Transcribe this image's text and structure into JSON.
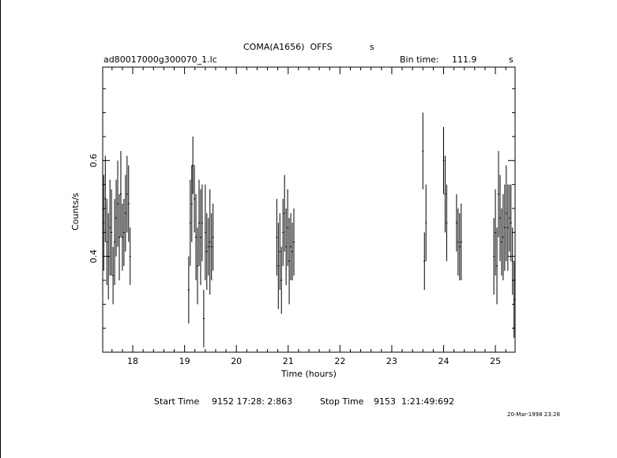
{
  "header": {
    "title": "COMA(A1656)  OFFS",
    "title_suffix": "s",
    "filename": "ad80017000g300070_1.lc",
    "bin_label": "Bin time:",
    "bin_value": "111.9",
    "bin_unit": "s"
  },
  "footer": {
    "start_label": "Start Time",
    "start_value": "9152 17:28: 2:863",
    "stop_label": "Stop Time",
    "stop_value": "9153  1:21:49:692",
    "timestamp": "20-Mar-1998 23:28"
  },
  "chart_data": {
    "type": "scatter",
    "xlabel": "Time (hours)",
    "ylabel": "Counts/s",
    "xlim": [
      17.42,
      25.38
    ],
    "ylim": [
      0.2,
      0.795
    ],
    "xticks": [
      18,
      19,
      20,
      21,
      22,
      23,
      24,
      25
    ],
    "yticks": [
      0.4,
      0.6
    ],
    "xerr": 0.0155,
    "points": [
      [
        17.44,
        0.47,
        0.1
      ],
      [
        17.47,
        0.52,
        0.09
      ],
      [
        17.5,
        0.43,
        0.09
      ],
      [
        17.53,
        0.4,
        0.09
      ],
      [
        17.56,
        0.46,
        0.1
      ],
      [
        17.59,
        0.45,
        0.09
      ],
      [
        17.62,
        0.36,
        0.06
      ],
      [
        17.65,
        0.43,
        0.09
      ],
      [
        17.68,
        0.48,
        0.08
      ],
      [
        17.71,
        0.51,
        0.09
      ],
      [
        17.74,
        0.44,
        0.09
      ],
      [
        17.77,
        0.53,
        0.09
      ],
      [
        17.8,
        0.44,
        0.07
      ],
      [
        17.83,
        0.45,
        0.07
      ],
      [
        17.86,
        0.49,
        0.08
      ],
      [
        17.89,
        0.53,
        0.08
      ],
      [
        17.92,
        0.51,
        0.08
      ],
      [
        17.95,
        0.4,
        0.06
      ],
      [
        19.08,
        0.33,
        0.07
      ],
      [
        19.11,
        0.47,
        0.09
      ],
      [
        19.14,
        0.51,
        0.08
      ],
      [
        19.16,
        0.59,
        0.06
      ],
      [
        19.19,
        0.52,
        0.07
      ],
      [
        19.22,
        0.44,
        0.09
      ],
      [
        19.25,
        0.38,
        0.08
      ],
      [
        19.28,
        0.47,
        0.09
      ],
      [
        19.31,
        0.44,
        0.1
      ],
      [
        19.34,
        0.47,
        0.08
      ],
      [
        19.37,
        0.27,
        0.06
      ],
      [
        19.4,
        0.45,
        0.1
      ],
      [
        19.43,
        0.41,
        0.08
      ],
      [
        19.46,
        0.42,
        0.06
      ],
      [
        19.49,
        0.43,
        0.11
      ],
      [
        19.52,
        0.42,
        0.07
      ],
      [
        19.55,
        0.44,
        0.07
      ],
      [
        20.78,
        0.44,
        0.08
      ],
      [
        20.81,
        0.38,
        0.09
      ],
      [
        20.84,
        0.41,
        0.08
      ],
      [
        20.87,
        0.35,
        0.07
      ],
      [
        20.9,
        0.45,
        0.07
      ],
      [
        20.93,
        0.49,
        0.08
      ],
      [
        20.96,
        0.42,
        0.08
      ],
      [
        20.99,
        0.46,
        0.08
      ],
      [
        21.02,
        0.39,
        0.09
      ],
      [
        21.05,
        0.42,
        0.07
      ],
      [
        21.08,
        0.41,
        0.06
      ],
      [
        21.11,
        0.43,
        0.07
      ],
      [
        23.6,
        0.62,
        0.08
      ],
      [
        23.63,
        0.39,
        0.06
      ],
      [
        23.66,
        0.47,
        0.08
      ],
      [
        24.0,
        0.6,
        0.07
      ],
      [
        24.03,
        0.53,
        0.08
      ],
      [
        24.06,
        0.47,
        0.08
      ],
      [
        24.25,
        0.47,
        0.06
      ],
      [
        24.28,
        0.43,
        0.07
      ],
      [
        24.31,
        0.42,
        0.07
      ],
      [
        24.34,
        0.43,
        0.08
      ],
      [
        24.97,
        0.4,
        0.08
      ],
      [
        25.0,
        0.45,
        0.09
      ],
      [
        25.03,
        0.38,
        0.08
      ],
      [
        25.06,
        0.53,
        0.09
      ],
      [
        25.09,
        0.48,
        0.09
      ],
      [
        25.12,
        0.43,
        0.07
      ],
      [
        25.15,
        0.44,
        0.09
      ],
      [
        25.18,
        0.46,
        0.09
      ],
      [
        25.21,
        0.49,
        0.1
      ],
      [
        25.24,
        0.46,
        0.09
      ],
      [
        25.27,
        0.48,
        0.07
      ],
      [
        25.3,
        0.47,
        0.08
      ],
      [
        25.33,
        0.39,
        0.07
      ],
      [
        25.36,
        0.31,
        0.08
      ]
    ]
  }
}
